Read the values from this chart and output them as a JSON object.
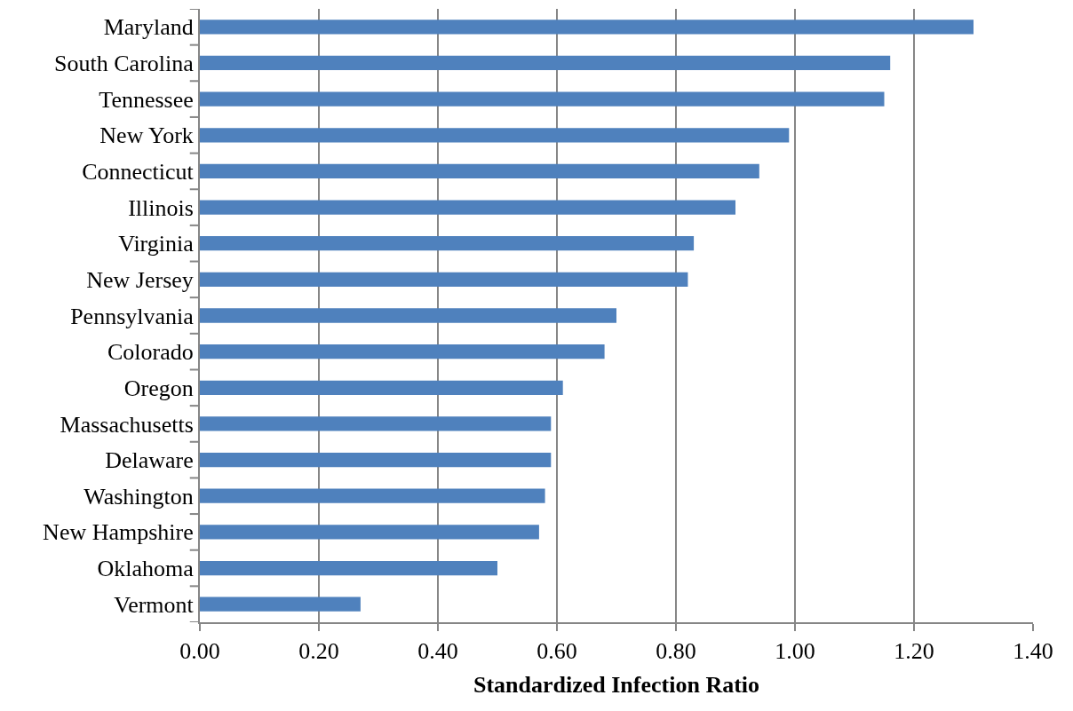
{
  "chart_data": {
    "type": "bar",
    "orientation": "horizontal",
    "xlabel": "Standardized Infection Ratio",
    "categories": [
      "Maryland",
      "South Carolina",
      "Tennessee",
      "New York",
      "Connecticut",
      "Illinois",
      "Virginia",
      "New Jersey",
      "Pennsylvania",
      "Colorado",
      "Oregon",
      "Massachusetts",
      "Delaware",
      "Washington",
      "New Hampshire",
      "Oklahoma",
      "Vermont"
    ],
    "values": [
      1.3,
      1.16,
      1.15,
      0.99,
      0.94,
      0.9,
      0.83,
      0.82,
      0.7,
      0.68,
      0.61,
      0.59,
      0.59,
      0.58,
      0.57,
      0.5,
      0.27
    ],
    "color": "#4f81bd",
    "xlim": [
      0,
      1.4
    ],
    "xticks": [
      {
        "value": 0,
        "label": "0.00"
      },
      {
        "value": 0.2,
        "label": "0.20"
      },
      {
        "value": 0.4,
        "label": "0.40"
      },
      {
        "value": 0.6,
        "label": "0.60"
      },
      {
        "value": 0.8,
        "label": "0.80"
      },
      {
        "value": 1.0,
        "label": "1.00"
      },
      {
        "value": 1.2,
        "label": "1.20"
      },
      {
        "value": 1.4,
        "label": "1.40"
      }
    ],
    "grid": "x"
  }
}
